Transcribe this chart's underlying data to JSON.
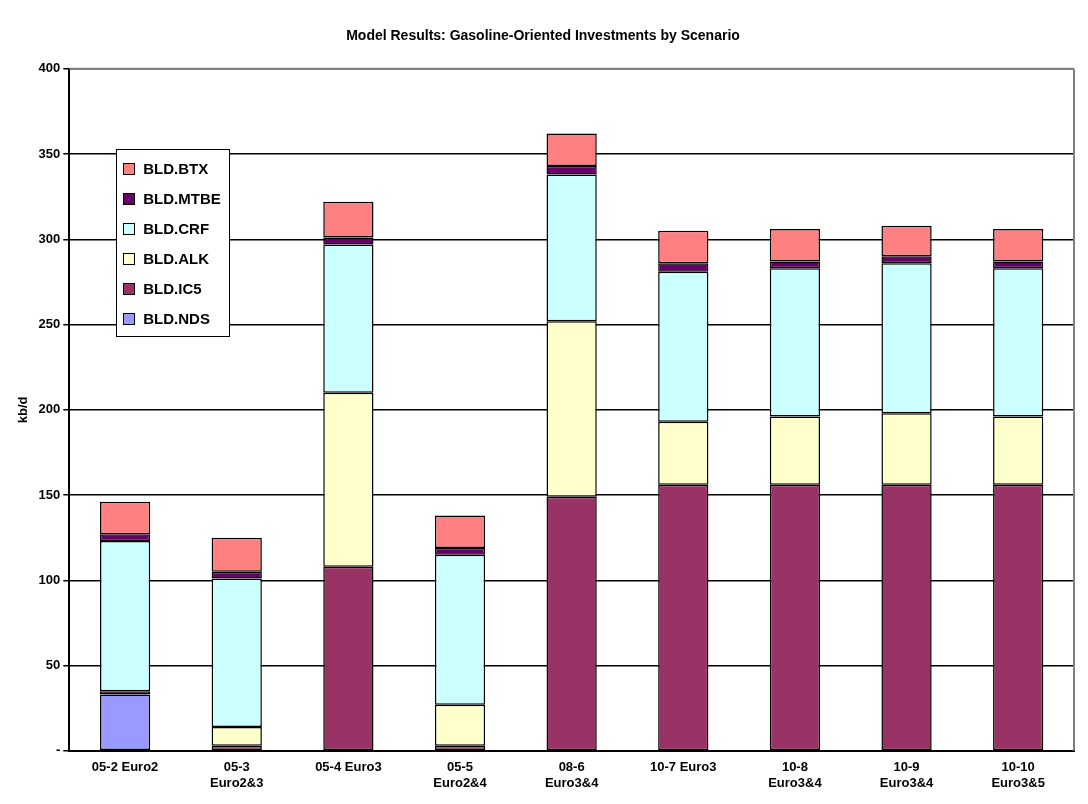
{
  "chart_data": {
    "type": "bar",
    "title": "Model Results: Gasoline-Oriented Investments by Scenario",
    "ylabel": "kb/d",
    "categories": [
      "05-2 Euro2",
      "05-3 Euro2&3",
      "05-4 Euro3",
      "05-5 Euro2&4",
      "08-6 Euro3&4",
      "10-7 Euro3",
      "10-8 Euro3&4",
      "10-9 Euro3&4",
      "10-10 Euro3&5"
    ],
    "stacked": true,
    "series": [
      {
        "name": "BLD.NDS",
        "color": "#9999ff",
        "values": [
          33,
          0,
          0,
          0,
          0,
          0,
          0,
          0,
          0
        ]
      },
      {
        "name": "BLD.IC5",
        "color": "#993366",
        "values": [
          2,
          3,
          108,
          3,
          149,
          156,
          156,
          156,
          156
        ]
      },
      {
        "name": "BLD.ALK",
        "color": "#ffffcc",
        "values": [
          0,
          11,
          102,
          24,
          103,
          37,
          40,
          42,
          40
        ]
      },
      {
        "name": "BLD.CRF",
        "color": "#ccffff",
        "values": [
          88,
          87,
          87,
          88,
          86,
          88,
          87,
          88,
          87
        ]
      },
      {
        "name": "BLD.MTBE",
        "color": "#660066",
        "values": [
          4,
          4,
          4,
          4,
          5,
          5,
          4,
          4,
          4
        ]
      },
      {
        "name": "BLD.BTX",
        "color": "#ff8080",
        "values": [
          19,
          20,
          21,
          19,
          19,
          19,
          19,
          18,
          19
        ]
      }
    ],
    "ylim": [
      0,
      400
    ],
    "yticks": [
      {
        "value": 0,
        "label": "-"
      },
      50,
      100,
      150,
      200,
      250,
      300,
      350,
      400
    ],
    "grid": "y",
    "legend": "top left"
  }
}
